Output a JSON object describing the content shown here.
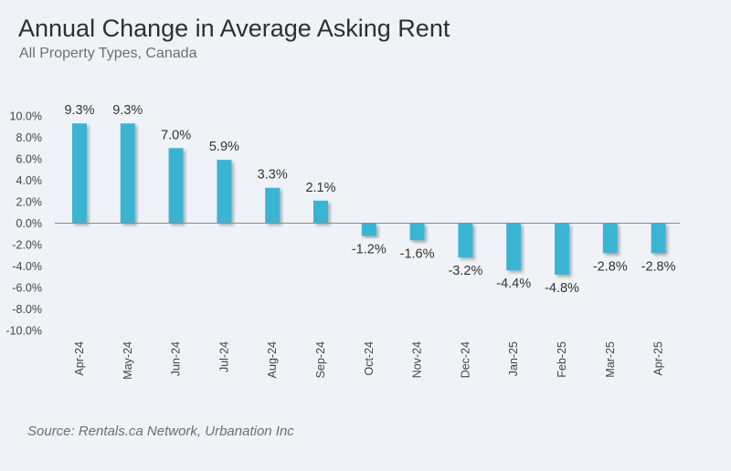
{
  "chart_data": {
    "type": "bar",
    "title": "Annual Change in Average Asking Rent",
    "subtitle": "All Property Types, Canada",
    "source": "Source: Rentals.ca Network, Urbanation Inc",
    "categories": [
      "Apr-24",
      "May-24",
      "Jun-24",
      "Jul-24",
      "Aug-24",
      "Sep-24",
      "Oct-24",
      "Nov-24",
      "Dec-24",
      "Jan-25",
      "Feb-25",
      "Mar-25",
      "Apr-25"
    ],
    "values": [
      9.3,
      9.3,
      7.0,
      5.9,
      3.3,
      2.1,
      -1.2,
      -1.6,
      -3.2,
      -4.4,
      -4.8,
      -2.8,
      -2.8
    ],
    "data_labels": [
      "9.3%",
      "9.3%",
      "7.0%",
      "5.9%",
      "3.3%",
      "2.1%",
      "-1.2%",
      "-1.6%",
      "-3.2%",
      "-4.4%",
      "-4.8%",
      "-2.8%",
      "-2.8%"
    ],
    "yticks": [
      10,
      8,
      6,
      4,
      2,
      0,
      -2,
      -4,
      -6,
      -8,
      -10
    ],
    "ytick_labels": [
      "10.0%",
      "8.0%",
      "6.0%",
      "4.0%",
      "2.0%",
      "0.0%",
      "-2.0%",
      "-4.0%",
      "-6.0%",
      "-8.0%",
      "-10.0%"
    ],
    "ylim": [
      -10,
      10
    ],
    "xlabel": "",
    "ylabel": "",
    "grid": false,
    "bar_color": "#3ab4d4",
    "axis_color": "#8c8c8c"
  }
}
